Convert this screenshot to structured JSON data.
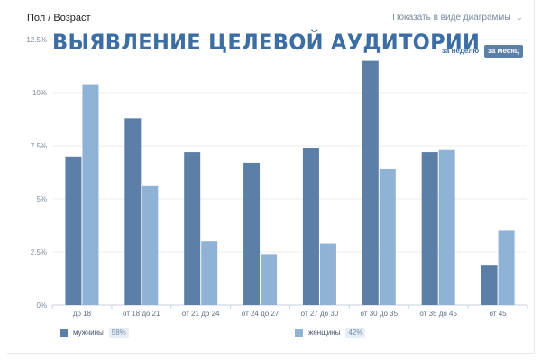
{
  "header": {
    "title": "Пол / Возраст",
    "view_toggle": "Показать в виде диаграммы"
  },
  "banner": "ВЫЯВЛЕНИЕ ЦЕЛЕВОЙ АУДИТОРИИ",
  "period": {
    "week": "за неделю",
    "month": "за месяц"
  },
  "legend": [
    {
      "label": "мужчины",
      "share": "58%",
      "color": "#5b7fa6"
    },
    {
      "label": "женщины",
      "share": "42%",
      "color": "#8fb2d6"
    }
  ],
  "chart_data": {
    "type": "bar",
    "categories": [
      "до 18",
      "от 18 до 21",
      "от 21 до 24",
      "от 24 до 27",
      "от 27 до 30",
      "от 30 до 35",
      "от 35 до 45",
      "от 45"
    ],
    "series": [
      {
        "name": "мужчины",
        "values": [
          7.0,
          8.8,
          7.2,
          6.7,
          7.4,
          11.5,
          7.2,
          1.9
        ]
      },
      {
        "name": "женщины",
        "values": [
          10.4,
          5.6,
          3.0,
          2.4,
          2.9,
          6.4,
          7.3,
          3.5
        ]
      }
    ],
    "yticks": [
      "0%",
      "2.5%",
      "5%",
      "7.5%",
      "10%",
      "12.5%"
    ],
    "ylim": [
      0,
      12.5
    ],
    "grid": true,
    "colors": [
      "#5b7fa6",
      "#8fb2d6"
    ]
  }
}
